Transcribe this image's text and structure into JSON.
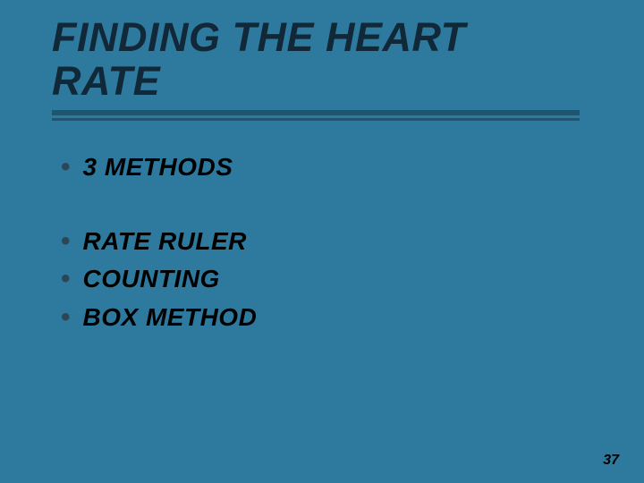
{
  "slide": {
    "title": "FINDING THE HEART RATE",
    "bullet_groups": [
      {
        "items": [
          {
            "text": "3 METHODS"
          }
        ]
      },
      {
        "items": [
          {
            "text": "RATE RULER"
          },
          {
            "text": "COUNTING"
          },
          {
            "text": "BOX METHOD"
          }
        ]
      }
    ],
    "page_number": "37",
    "styling": {
      "background_color": "#2e7a9e",
      "title_color": "#102838",
      "title_fontsize": 45,
      "title_font_style": "italic",
      "title_font_weight": 900,
      "underline_color": "#1f556e",
      "bullet_marker": "•",
      "bullet_marker_color": "#2d4655",
      "bullet_text_color": "#000000",
      "bullet_fontsize": 28,
      "bullet_font_style": "italic",
      "bullet_font_weight": 900,
      "page_number_color": "#000000",
      "page_number_fontsize": 16
    }
  }
}
